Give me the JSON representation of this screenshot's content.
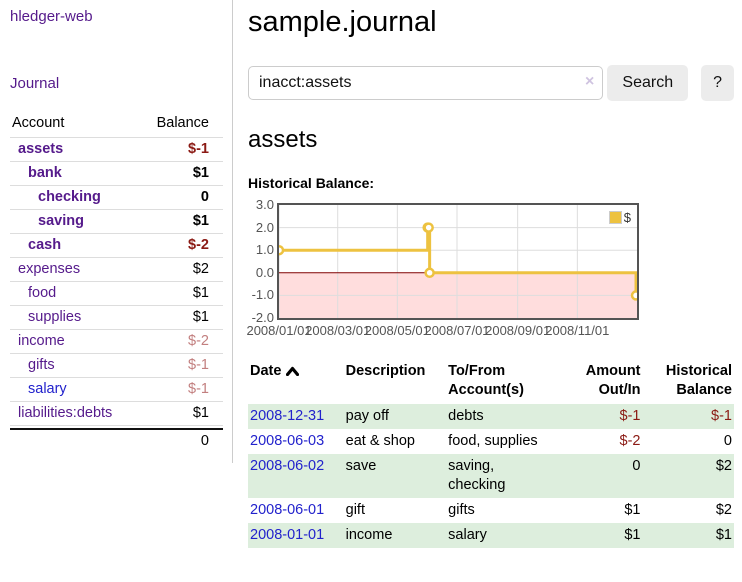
{
  "app": {
    "brand": "hledger-web",
    "nav_journal": "Journal"
  },
  "colors": {
    "purple_link": "#551a8b",
    "blue_link": "#2222cc",
    "negative_red": "#8b1a14",
    "dim_negative_red": "#c27f7f",
    "row_green": "#ddeedd",
    "chart_gold": "#edc240"
  },
  "sidebar": {
    "header": {
      "account": "Account",
      "balance": "Balance"
    },
    "accounts": [
      {
        "name": "assets",
        "balance": "$-1",
        "indent": 0,
        "bold": true,
        "link": "purple",
        "amount": "neg"
      },
      {
        "name": "bank",
        "balance": "$1",
        "indent": 1,
        "bold": true,
        "link": "purple",
        "amount": "black"
      },
      {
        "name": "checking",
        "balance": "0",
        "indent": 2,
        "bold": true,
        "link": "purple",
        "amount": "black"
      },
      {
        "name": "saving",
        "balance": "$1",
        "indent": 2,
        "bold": true,
        "link": "purple",
        "amount": "black"
      },
      {
        "name": "cash",
        "balance": "$-2",
        "indent": 1,
        "bold": true,
        "link": "purple",
        "amount": "neg"
      },
      {
        "name": "expenses",
        "balance": "$2",
        "indent": 0,
        "bold": false,
        "link": "purple",
        "amount": "black"
      },
      {
        "name": "food",
        "balance": "$1",
        "indent": 1,
        "bold": false,
        "link": "purple",
        "amount": "black"
      },
      {
        "name": "supplies",
        "balance": "$1",
        "indent": 1,
        "bold": false,
        "link": "purple",
        "amount": "black"
      },
      {
        "name": "income",
        "balance": "$-2",
        "indent": 0,
        "bold": false,
        "link": "purple",
        "amount": "negdim"
      },
      {
        "name": "gifts",
        "balance": "$-1",
        "indent": 1,
        "bold": false,
        "link": "purple",
        "amount": "negdim"
      },
      {
        "name": "salary",
        "balance": "$-1",
        "indent": 1,
        "bold": false,
        "link": "blue",
        "amount": "negdim"
      },
      {
        "name": "liabilities:debts",
        "balance": "$1",
        "indent": 0,
        "bold": false,
        "link": "purple",
        "amount": "black"
      }
    ],
    "total": "0"
  },
  "main": {
    "title": "sample.journal",
    "search": {
      "value": "inacct:assets",
      "clear": "×",
      "button": "Search",
      "help": "?"
    },
    "account_heading": "assets",
    "chart_label": "Historical Balance:"
  },
  "chart_data": {
    "type": "line",
    "step": true,
    "title": "Historical Balance",
    "legend": "$",
    "legend_position": "top-right",
    "grid": true,
    "x_range_days": 366,
    "ylim": [
      -2,
      3
    ],
    "y_ticks": [
      3.0,
      2.0,
      1.0,
      0.0,
      -1.0,
      -2.0
    ],
    "x_ticks": [
      {
        "label": "2008/01/01",
        "day": 0
      },
      {
        "label": "2008/03/01",
        "day": 60
      },
      {
        "label": "2008/05/01",
        "day": 121
      },
      {
        "label": "2008/07/01",
        "day": 182
      },
      {
        "label": "2008/09/01",
        "day": 244
      },
      {
        "label": "2008/11/01",
        "day": 305
      }
    ],
    "series": [
      {
        "name": "$",
        "color": "#edc240",
        "points": [
          {
            "date": "2008-01-01",
            "day": 0,
            "value": 1
          },
          {
            "date": "2008-06-01",
            "day": 152,
            "value": 2
          },
          {
            "date": "2008-06-02",
            "day": 153,
            "value": 2
          },
          {
            "date": "2008-06-03",
            "day": 154,
            "value": 0
          },
          {
            "date": "2008-12-31",
            "day": 365,
            "value": -1
          }
        ]
      }
    ],
    "negative_region_color": "#ffdddd",
    "zero_line_color": "#800000",
    "grid_color": "#dddddd",
    "border_color": "#545454"
  },
  "register": {
    "headers": {
      "date": {
        "l1": "Date",
        "l2": ""
      },
      "description": {
        "l1": "Description",
        "l2": ""
      },
      "tofrom": {
        "l1": "To/From",
        "l2": "Account(s)"
      },
      "amount": {
        "l1": "Amount",
        "l2": "Out/In"
      },
      "balance": {
        "l1": "Historical",
        "l2": "Balance"
      }
    },
    "sort": {
      "column": "date",
      "direction": "ascending"
    },
    "rows": [
      {
        "date": "2008-12-31",
        "description": "pay off",
        "to_from": "debts",
        "amount": "$-1",
        "balance": "$-1",
        "amount_neg": true,
        "balance_neg": true,
        "shaded": true
      },
      {
        "date": "2008-06-03",
        "description": "eat & shop",
        "to_from": "food, supplies",
        "amount": "$-2",
        "balance": "0",
        "amount_neg": true,
        "balance_neg": false,
        "shaded": false
      },
      {
        "date": "2008-06-02",
        "description": "save",
        "to_from": "saving,\nchecking",
        "amount": "0",
        "balance": "$2",
        "amount_neg": false,
        "balance_neg": false,
        "shaded": true
      },
      {
        "date": "2008-06-01",
        "description": "gift",
        "to_from": "gifts",
        "amount": "$1",
        "balance": "$2",
        "amount_neg": false,
        "balance_neg": false,
        "shaded": false
      },
      {
        "date": "2008-01-01",
        "description": "income",
        "to_from": "salary",
        "amount": "$1",
        "balance": "$1",
        "amount_neg": false,
        "balance_neg": false,
        "shaded": true
      }
    ]
  }
}
